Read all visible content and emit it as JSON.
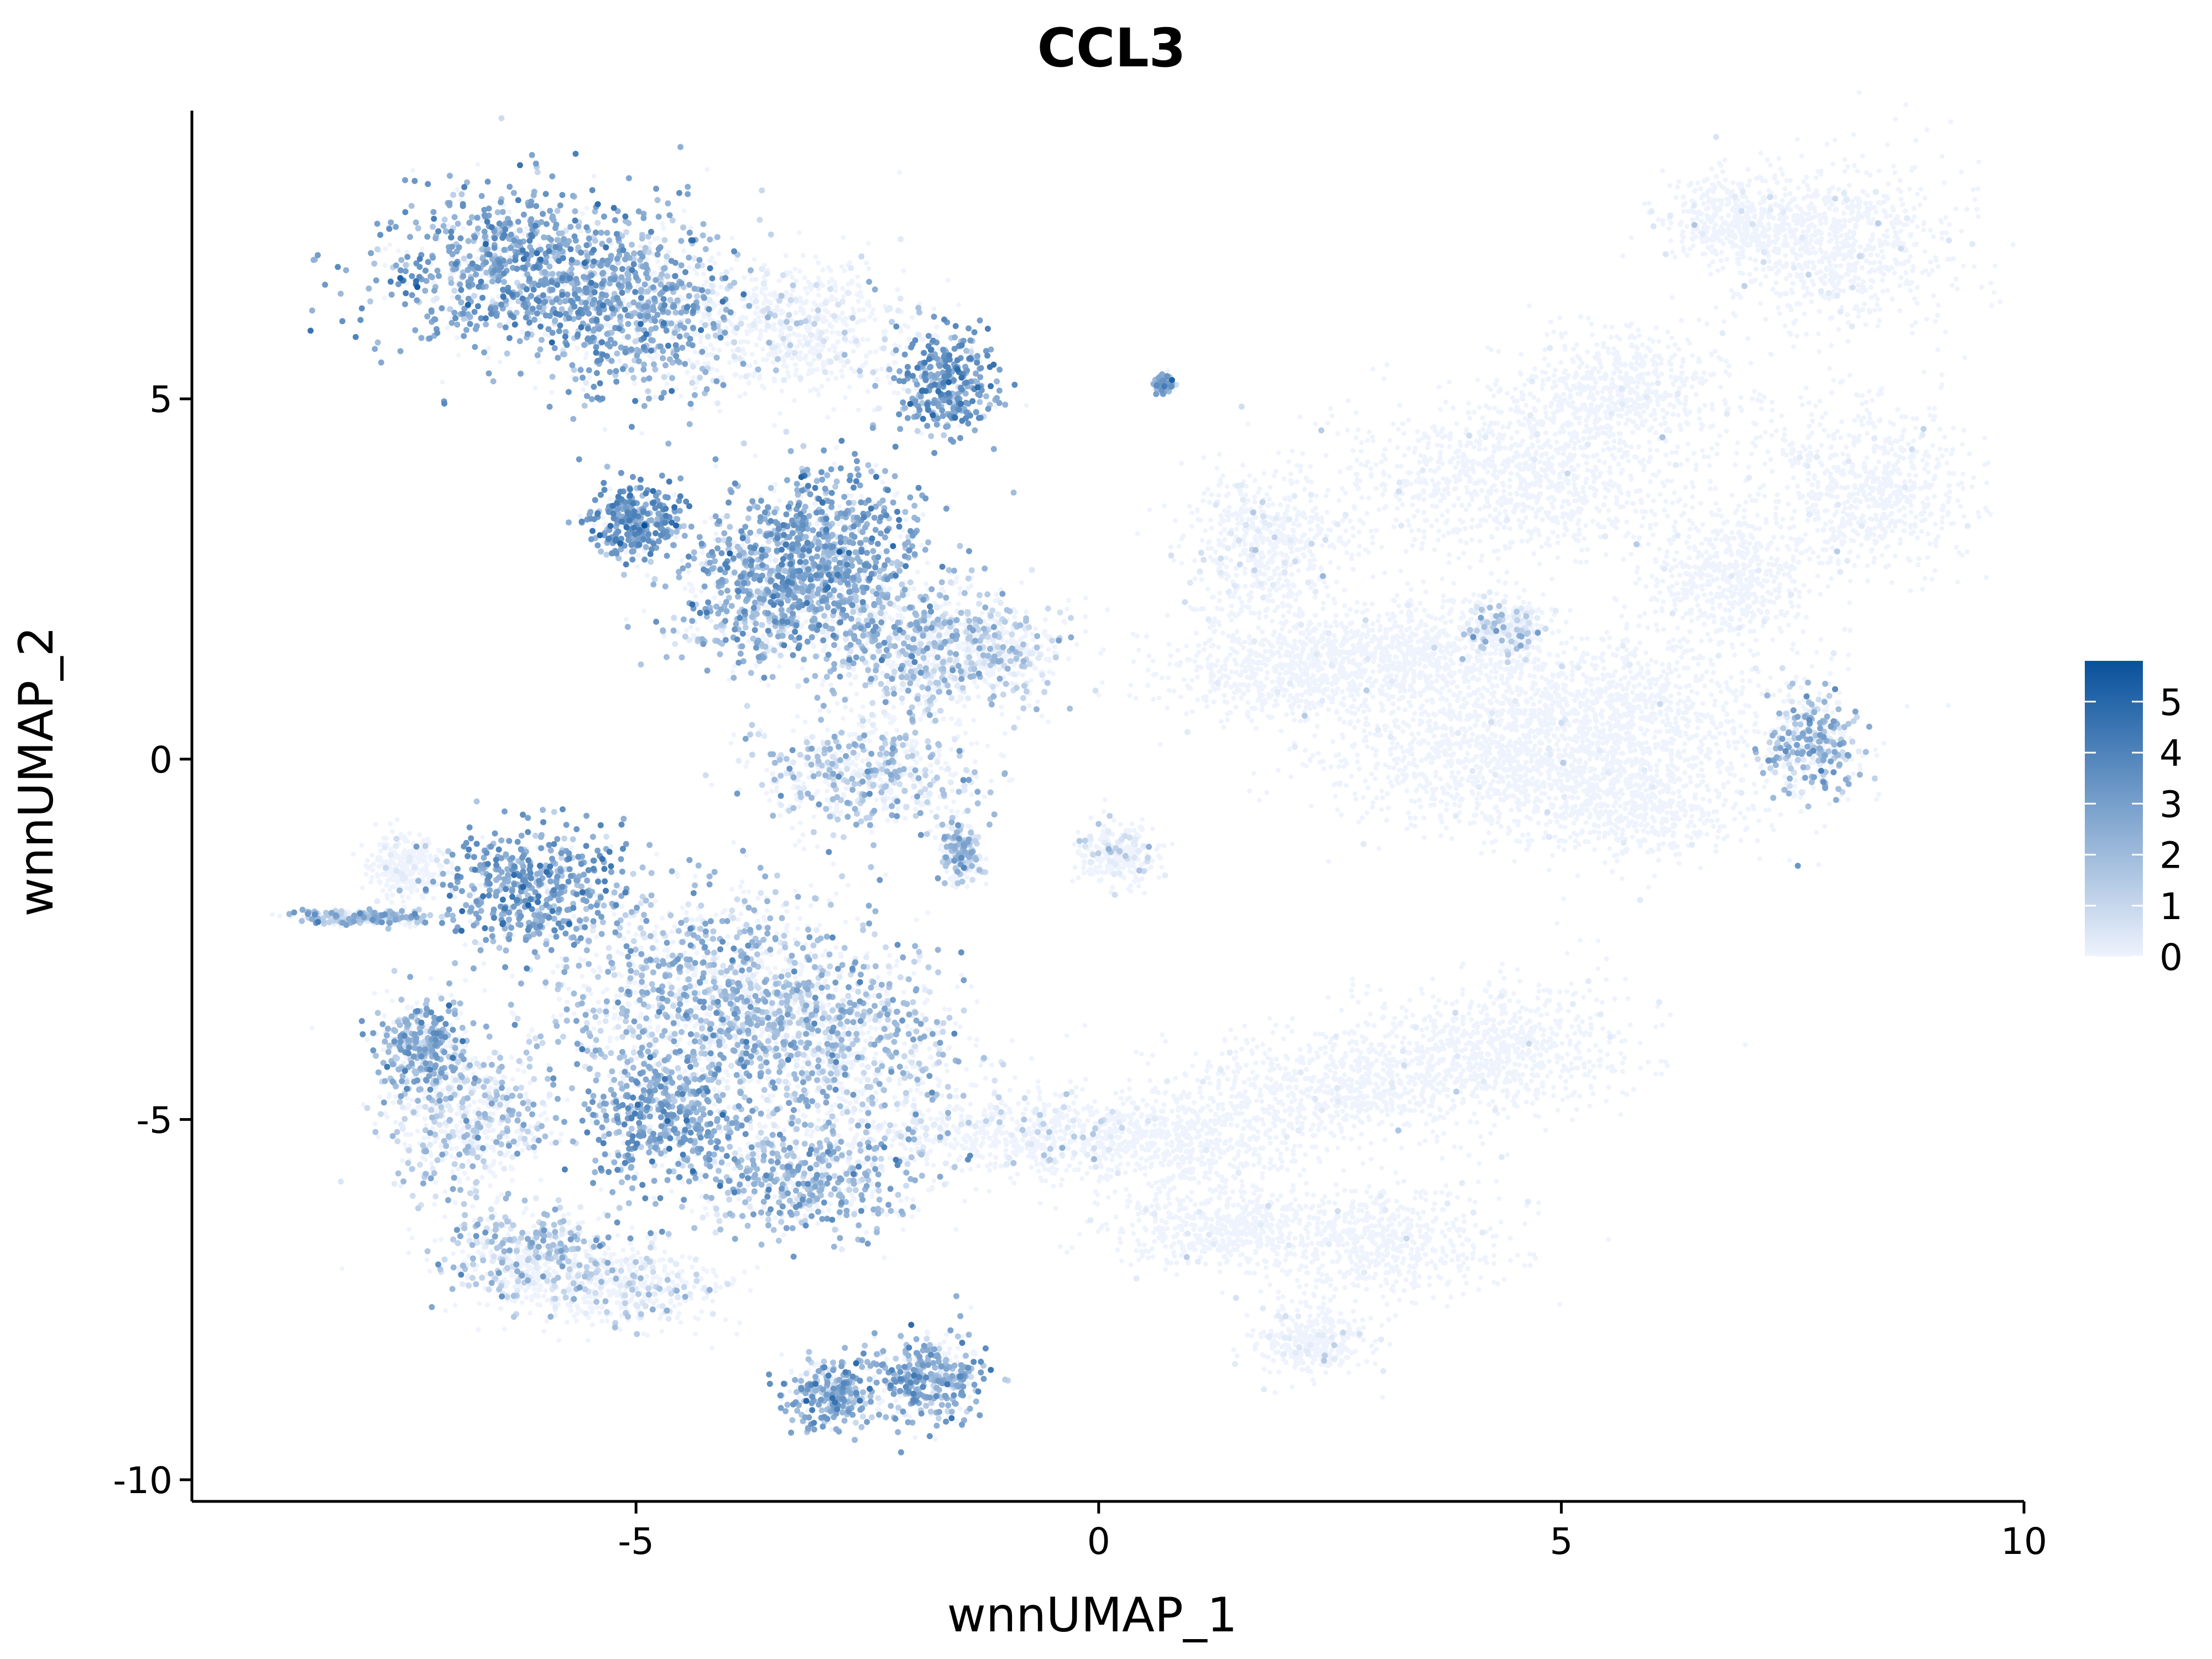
{
  "chart_data": {
    "type": "scatter",
    "title": "CCL3",
    "xlabel": "wnnUMAP_1",
    "ylabel": "wnnUMAP_2",
    "xlim": [
      -9.8,
      10
    ],
    "ylim": [
      -10.3,
      9.0
    ],
    "x_ticks": [
      -5,
      0,
      5,
      10
    ],
    "x_tick_labels": [
      "-5",
      "0",
      "5",
      "10"
    ],
    "y_ticks": [
      -10,
      -5,
      0,
      5
    ],
    "y_tick_labels": [
      "-10",
      "-5",
      "0",
      "5"
    ],
    "grid": false,
    "legend": {
      "placement": "right",
      "type": "continuous colorbar",
      "min": 0,
      "max": 5.8,
      "ticks": [
        0,
        1,
        2,
        3,
        4,
        5
      ],
      "tick_labels": [
        "0",
        "1",
        "2",
        "3",
        "4",
        "5"
      ],
      "color_low": "#eef3fd",
      "color_high": "#08519c"
    },
    "point_color_low": "#eef3fd",
    "point_color_high": "#08519c",
    "clusters": [
      {
        "x": -6.3,
        "y": 6.8,
        "sx": 0.75,
        "sy": 0.55,
        "expr": 2.6
      },
      {
        "x": -5.0,
        "y": 6.2,
        "sx": 0.55,
        "sy": 0.6,
        "expr": 2.3
      },
      {
        "x": -3.3,
        "y": 6.0,
        "sx": 0.6,
        "sy": 0.5,
        "expr": 0.5
      },
      {
        "x": -1.6,
        "y": 5.2,
        "sx": 0.28,
        "sy": 0.35,
        "expr": 2.9
      },
      {
        "x": -3.0,
        "y": 3.0,
        "sx": 0.55,
        "sy": 0.55,
        "expr": 2.6
      },
      {
        "x": -3.5,
        "y": 2.3,
        "sx": 0.6,
        "sy": 0.5,
        "expr": 2.2
      },
      {
        "x": -5.0,
        "y": 3.3,
        "sx": 0.25,
        "sy": 0.25,
        "expr": 3.0
      },
      {
        "x": -2.1,
        "y": 1.6,
        "sx": 0.55,
        "sy": 0.5,
        "expr": 1.6
      },
      {
        "x": -1.2,
        "y": 1.5,
        "sx": 0.45,
        "sy": 0.35,
        "expr": 1.2
      },
      {
        "x": -2.5,
        "y": -0.2,
        "sx": 0.6,
        "sy": 0.4,
        "expr": 1.4
      },
      {
        "x": -1.5,
        "y": -1.3,
        "sx": 0.1,
        "sy": 0.2,
        "expr": 1.5
      },
      {
        "x": 0.7,
        "y": 5.2,
        "sx": 0.05,
        "sy": 0.05,
        "expr": 2.0
      },
      {
        "x": 1.8,
        "y": 3.0,
        "sx": 0.45,
        "sy": 0.5,
        "expr": 0.3
      },
      {
        "x": 0.2,
        "y": -1.3,
        "sx": 0.2,
        "sy": 0.2,
        "expr": 0.6
      },
      {
        "x": -6.1,
        "y": -1.8,
        "sx": 0.5,
        "sy": 0.4,
        "expr": 2.7
      },
      {
        "x": -4.7,
        "y": -4.9,
        "sx": 0.45,
        "sy": 0.45,
        "expr": 2.5
      },
      {
        "x": -4.2,
        "y": -3.2,
        "sx": 0.9,
        "sy": 0.7,
        "expr": 1.8
      },
      {
        "x": -3.0,
        "y": -3.9,
        "sx": 0.8,
        "sy": 0.6,
        "expr": 1.6
      },
      {
        "x": -3.2,
        "y": -5.8,
        "sx": 0.6,
        "sy": 0.4,
        "expr": 2.0
      },
      {
        "x": -7.3,
        "y": -4.0,
        "sx": 0.25,
        "sy": 0.35,
        "expr": 2.2
      },
      {
        "x": -6.8,
        "y": -5.0,
        "sx": 0.45,
        "sy": 0.5,
        "expr": 1.3
      },
      {
        "x": -6.2,
        "y": -6.8,
        "sx": 0.45,
        "sy": 0.3,
        "expr": 1.5
      },
      {
        "x": -5.3,
        "y": -7.3,
        "sx": 0.6,
        "sy": 0.3,
        "expr": 0.8
      },
      {
        "x": -2.9,
        "y": -8.8,
        "sx": 0.25,
        "sy": 0.25,
        "expr": 2.3
      },
      {
        "x": -1.8,
        "y": -8.6,
        "sx": 0.3,
        "sy": 0.3,
        "expr": 2.3
      },
      {
        "x": -7.9,
        "y": -2.2,
        "sx": 0.35,
        "sy": 0.05,
        "expr": 1.8
      },
      {
        "x": -7.5,
        "y": -1.5,
        "sx": 0.2,
        "sy": 0.2,
        "expr": 0.2
      },
      {
        "x": -1.0,
        "y": -5.2,
        "sx": 0.9,
        "sy": 0.3,
        "expr": 0.4
      },
      {
        "x": 8.0,
        "y": 7.1,
        "sx": 0.6,
        "sy": 0.6,
        "expr": 0.08
      },
      {
        "x": 6.9,
        "y": 7.5,
        "sx": 0.4,
        "sy": 0.3,
        "expr": 0.08
      },
      {
        "x": 5.6,
        "y": 5.1,
        "sx": 0.6,
        "sy": 0.4,
        "expr": 0.05
      },
      {
        "x": 4.6,
        "y": 3.9,
        "sx": 1.0,
        "sy": 0.55,
        "expr": 0.05
      },
      {
        "x": 8.3,
        "y": 3.7,
        "sx": 0.55,
        "sy": 0.6,
        "expr": 0.06
      },
      {
        "x": 6.8,
        "y": 2.5,
        "sx": 0.45,
        "sy": 0.4,
        "expr": 0.05
      },
      {
        "x": 5.6,
        "y": 0.7,
        "sx": 1.0,
        "sy": 0.55,
        "expr": 0.05
      },
      {
        "x": 4.2,
        "y": 0.0,
        "sx": 0.9,
        "sy": 0.5,
        "expr": 0.04
      },
      {
        "x": 5.8,
        "y": -0.6,
        "sx": 0.7,
        "sy": 0.4,
        "expr": 0.05
      },
      {
        "x": 3.3,
        "y": 1.5,
        "sx": 0.7,
        "sy": 0.4,
        "expr": 0.05
      },
      {
        "x": 2.0,
        "y": 1.2,
        "sx": 0.7,
        "sy": 0.35,
        "expr": 0.03
      },
      {
        "x": 4.4,
        "y": 1.8,
        "sx": 0.2,
        "sy": 0.2,
        "expr": 1.0
      },
      {
        "x": 7.7,
        "y": 0.2,
        "sx": 0.25,
        "sy": 0.35,
        "expr": 1.8
      },
      {
        "x": 4.3,
        "y": -4.0,
        "sx": 0.75,
        "sy": 0.45,
        "expr": 0.05
      },
      {
        "x": 2.5,
        "y": -4.6,
        "sx": 0.9,
        "sy": 0.35,
        "expr": 0.05
      },
      {
        "x": 0.9,
        "y": -5.3,
        "sx": 0.7,
        "sy": 0.3,
        "expr": 0.05
      },
      {
        "x": 3.0,
        "y": -6.7,
        "sx": 0.7,
        "sy": 0.4,
        "expr": 0.05
      },
      {
        "x": 1.3,
        "y": -6.5,
        "sx": 0.6,
        "sy": 0.3,
        "expr": 0.05
      },
      {
        "x": 2.3,
        "y": -8.1,
        "sx": 0.3,
        "sy": 0.25,
        "expr": 0.2
      }
    ]
  }
}
